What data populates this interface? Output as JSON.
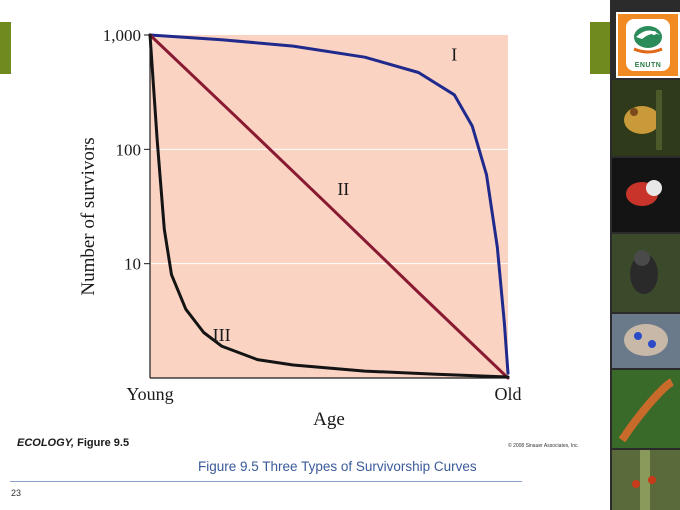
{
  "slide": {
    "figure_label_bold": "ECOLOGY,",
    "figure_label_rest": " Figure 9.5",
    "copyright": "© 2008 Sinauer Associates, Inc.",
    "caption": "Figure 9.5  Three Types of Survivorship Curves",
    "page_number": "23",
    "logo_text": "ENUTN",
    "accent_color": "#6f8a1e"
  },
  "chart_data": {
    "type": "line",
    "title": "Three Types of Survivorship Curves",
    "xlabel": "Age",
    "ylabel": "Number of survivors",
    "x_tick_labels": [
      "Young",
      "Old"
    ],
    "x_scale": "relative age (0 = Young, 1 = Old)",
    "xlim": [
      0,
      1
    ],
    "y_scale": "log",
    "ylim": [
      1,
      1000
    ],
    "y_ticks": [
      {
        "value": 1000,
        "label": "1,000"
      },
      {
        "value": 100,
        "label": "100"
      },
      {
        "value": 10,
        "label": "10"
      }
    ],
    "plot_background": "#fad3c3",
    "series": [
      {
        "name": "I",
        "color": "#1f2a8c",
        "x": [
          0,
          0.2,
          0.4,
          0.6,
          0.75,
          0.85,
          0.9,
          0.94,
          0.97,
          0.99,
          1.0
        ],
        "y": [
          1000,
          910,
          800,
          640,
          470,
          300,
          160,
          60,
          14,
          3,
          1.1
        ]
      },
      {
        "name": "II",
        "color": "#8a1a32",
        "x": [
          0,
          0.25,
          0.5,
          0.75,
          1.0
        ],
        "y": [
          1000,
          180,
          32,
          5.6,
          1
        ]
      },
      {
        "name": "III",
        "color": "#141414",
        "x": [
          0,
          0.02,
          0.04,
          0.06,
          0.1,
          0.15,
          0.2,
          0.3,
          0.4,
          0.6,
          0.8,
          1.0
        ],
        "y": [
          1000,
          120,
          20,
          8,
          4,
          2.5,
          1.9,
          1.45,
          1.3,
          1.15,
          1.08,
          1.02
        ]
      }
    ],
    "annotations": [
      {
        "text": "I",
        "x": 0.85,
        "y": 600
      },
      {
        "text": "II",
        "x": 0.54,
        "y": 40
      },
      {
        "text": "III",
        "x": 0.2,
        "y": 2.1
      }
    ]
  }
}
